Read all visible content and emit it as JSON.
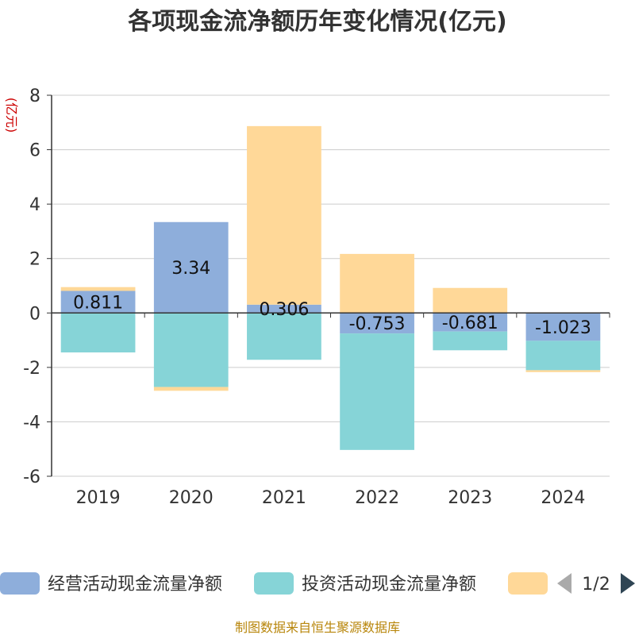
{
  "chart_data": {
    "type": "bar",
    "stacked": true,
    "title": "各项现金流净额历年变化情况(亿元)",
    "ylabel": "(亿元)",
    "xlabel": "",
    "categories": [
      "2019",
      "2020",
      "2021",
      "2022",
      "2023",
      "2024"
    ],
    "ylim": [
      -6,
      8
    ],
    "yticks": [
      -6,
      -4,
      -2,
      0,
      2,
      4,
      6,
      8
    ],
    "grid": true,
    "series": [
      {
        "name": "经营活动现金流量净额",
        "color": "#8eaedb",
        "values": [
          0.811,
          3.34,
          0.306,
          -0.753,
          -0.681,
          -1.023
        ],
        "labels": [
          "0.811",
          "3.34",
          "0.306",
          "-0.753",
          "-0.681",
          "-1.023"
        ]
      },
      {
        "name": "投资活动现金流量净额",
        "color": "#86d4d7",
        "values": [
          -1.45,
          -2.72,
          -1.72,
          -4.28,
          -0.69,
          -1.08
        ]
      },
      {
        "name": "",
        "color": "#ffd898",
        "values": [
          0.14,
          -0.14,
          6.56,
          2.17,
          0.92,
          -0.07
        ]
      }
    ],
    "legend": {
      "position": "bottom",
      "page": "1/2"
    }
  },
  "source": "制图数据来自恒生聚源数据库"
}
